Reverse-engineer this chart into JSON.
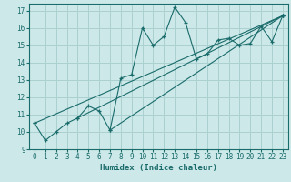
{
  "xlabel": "Humidex (Indice chaleur)",
  "bg_color": "#cce8e8",
  "grid_color": "#aad0d0",
  "line_color": "#1a6b6b",
  "xlim": [
    -0.5,
    23.5
  ],
  "ylim": [
    9,
    17.4
  ],
  "xticks": [
    0,
    1,
    2,
    3,
    4,
    5,
    6,
    7,
    8,
    9,
    10,
    11,
    12,
    13,
    14,
    15,
    16,
    17,
    18,
    19,
    20,
    21,
    22,
    23
  ],
  "yticks": [
    9,
    10,
    11,
    12,
    13,
    14,
    15,
    16,
    17
  ],
  "jagged_x": [
    0,
    1,
    2,
    3,
    4,
    5,
    6,
    7,
    8,
    9,
    10,
    11,
    12,
    13,
    14,
    15,
    16,
    17,
    18,
    19,
    20,
    21,
    22,
    23
  ],
  "jagged_y": [
    10.5,
    9.5,
    10.0,
    10.5,
    10.8,
    11.5,
    11.2,
    10.1,
    13.1,
    13.3,
    16.0,
    15.0,
    15.5,
    17.2,
    16.3,
    14.2,
    14.5,
    15.3,
    15.4,
    15.0,
    15.1,
    16.1,
    15.2,
    16.7
  ],
  "line1_x": [
    0,
    23
  ],
  "line1_y": [
    10.5,
    16.7
  ],
  "line2_x": [
    4,
    23
  ],
  "line2_y": [
    10.8,
    16.7
  ],
  "line3_x": [
    7,
    23
  ],
  "line3_y": [
    10.1,
    16.7
  ],
  "xlabel_fontsize": 6.5,
  "tick_fontsize": 5.5
}
